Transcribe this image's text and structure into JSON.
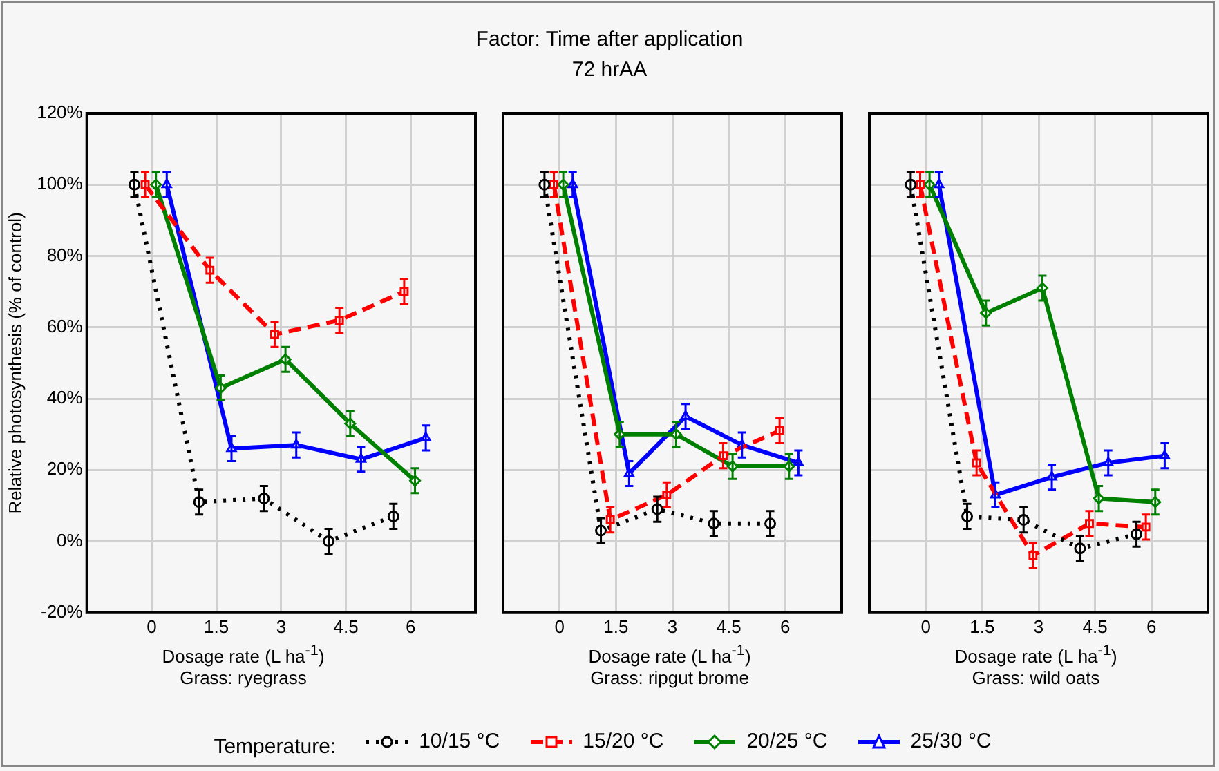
{
  "chart_data": [
    {
      "type": "line",
      "xlabel": "Dosage rate (L ha$^{-1}$)",
      "ylabel": "Relative photosynthesis (% of control)",
      "legend_title": "Temperature:",
      "legend": "bottom",
      "grid": true,
      "annotations": [
        "Grass: ryegrass"
      ],
      "xlim": [
        -1.5,
        7.5
      ],
      "xticks": [
        0,
        1.5,
        3,
        4.5,
        6
      ],
      "ylim": [
        -20,
        120
      ],
      "yticks": [
        {
          "value": -20,
          "label": "-20%"
        },
        {
          "value": 0,
          "label": "0%"
        },
        {
          "value": 20,
          "label": "20%"
        },
        {
          "value": 40,
          "label": "40%"
        },
        {
          "value": 60,
          "label": "60%"
        },
        {
          "value": 80,
          "label": "80%"
        },
        {
          "value": 100,
          "label": "100%"
        },
        {
          "value": 120,
          "label": "120%"
        }
      ],
      "series": [
        {
          "name": "10/15 °C",
          "color": "#000000",
          "marker": "circle",
          "line_style": "dotted",
          "x": [
            -0.4,
            1.1,
            2.6,
            4.1,
            5.6
          ],
          "values": [
            100,
            11,
            12,
            0,
            7
          ],
          "errors": [
            3.5,
            3.5,
            3.5,
            3.5,
            3.5
          ]
        },
        {
          "name": "15/20 °C",
          "color": "#ff0000",
          "marker": "square",
          "line_style": "dashed",
          "x": [
            -0.15,
            1.35,
            2.85,
            4.35,
            5.85
          ],
          "values": [
            100,
            76,
            58,
            62,
            70
          ],
          "errors": [
            3.5,
            3.5,
            3.5,
            3.5,
            3.5
          ]
        },
        {
          "name": "20/25 °C",
          "color": "#008000",
          "marker": "diamond",
          "line_style": "solid",
          "x": [
            0.1,
            1.6,
            3.1,
            4.6,
            6.1
          ],
          "values": [
            100,
            43,
            51,
            33,
            17
          ],
          "errors": [
            3.5,
            3.5,
            3.5,
            3.5,
            3.5
          ]
        },
        {
          "name": "25/30 °C",
          "color": "#0000ff",
          "marker": "triangle",
          "line_style": "solid",
          "x": [
            0.35,
            1.85,
            3.35,
            4.85,
            6.35
          ],
          "values": [
            100,
            26,
            27,
            23,
            29
          ],
          "errors": [
            3.5,
            3.5,
            3.5,
            3.5,
            3.5
          ]
        }
      ]
    },
    {
      "type": "line",
      "title": "Factor: Time after application",
      "subtitle": "72 hrAA",
      "xlabel": "Dosage rate (L ha$^{-1}$)",
      "grid": true,
      "tick_labels": "x",
      "annotations": [
        "Grass: ripgut brome"
      ],
      "xlim": [
        -1.5,
        7.5
      ],
      "xticks": [
        0,
        1.5,
        3,
        4.5,
        6
      ],
      "ylim": [
        -20,
        120
      ],
      "series": [
        {
          "color": "#000000",
          "marker": "circle",
          "line_style": "dotted",
          "x": [
            -0.4,
            1.1,
            2.6,
            4.1,
            5.6
          ],
          "values": [
            100,
            3,
            9,
            5,
            5
          ],
          "errors": [
            3.5,
            3.5,
            3.5,
            3.5,
            3.5
          ]
        },
        {
          "color": "#ff0000",
          "marker": "square",
          "line_style": "dashed",
          "x": [
            -0.15,
            1.35,
            2.85,
            4.35,
            5.85
          ],
          "values": [
            100,
            6,
            13,
            24,
            31
          ],
          "errors": [
            3.5,
            3.5,
            3.5,
            3.5,
            3.5
          ]
        },
        {
          "color": "#008000",
          "marker": "diamond",
          "line_style": "solid",
          "x": [
            0.1,
            1.6,
            3.1,
            4.6,
            6.1
          ],
          "values": [
            100,
            30,
            30,
            21,
            21
          ],
          "errors": [
            3.5,
            3.5,
            3.5,
            3.5,
            3.5
          ]
        },
        {
          "color": "#0000ff",
          "marker": "triangle",
          "line_style": "solid",
          "x": [
            0.35,
            1.85,
            3.35,
            4.85,
            6.35
          ],
          "values": [
            100,
            19,
            35,
            27,
            22
          ],
          "errors": [
            3.5,
            3.5,
            3.5,
            3.5,
            3.5
          ]
        }
      ]
    },
    {
      "type": "line",
      "xlabel": "Dosage rate (L ha$^{-1}$)",
      "grid": true,
      "tick_labels": "x",
      "annotations": [
        "Grass: wild oats"
      ],
      "xlim": [
        -1.5,
        7.5
      ],
      "xticks": [
        0,
        1.5,
        3,
        4.5,
        6
      ],
      "ylim": [
        -20,
        120
      ],
      "series": [
        {
          "color": "#000000",
          "marker": "circle",
          "line_style": "dotted",
          "x": [
            -0.4,
            1.1,
            2.6,
            4.1,
            5.6
          ],
          "values": [
            100,
            7,
            6,
            -2,
            2
          ],
          "errors": [
            3.5,
            3.5,
            3.5,
            3.5,
            3.5
          ]
        },
        {
          "color": "#ff0000",
          "marker": "square",
          "line_style": "dashed",
          "x": [
            -0.15,
            1.35,
            2.85,
            4.35,
            5.85
          ],
          "values": [
            100,
            22,
            -4,
            5,
            4
          ],
          "errors": [
            3.5,
            3.5,
            3.5,
            3.5,
            3.5
          ]
        },
        {
          "color": "#008000",
          "marker": "diamond",
          "line_style": "solid",
          "x": [
            0.1,
            1.6,
            3.1,
            4.6,
            6.1
          ],
          "values": [
            100,
            64,
            71,
            12,
            11
          ],
          "errors": [
            3.5,
            3.5,
            3.5,
            3.5,
            3.5
          ]
        },
        {
          "color": "#0000ff",
          "marker": "triangle",
          "line_style": "solid",
          "x": [
            0.35,
            1.85,
            3.35,
            4.85,
            6.35
          ],
          "values": [
            100,
            13,
            18,
            22,
            24
          ],
          "errors": [
            3.5,
            3.5,
            3.5,
            3.5,
            3.5
          ]
        }
      ]
    }
  ]
}
